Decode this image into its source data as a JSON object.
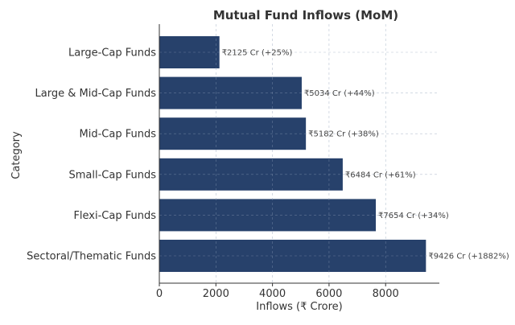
{
  "chart_data": {
    "type": "bar",
    "orientation": "horizontal",
    "title": "Mutual Fund Inflows (MoM)",
    "xlabel": "Inflows (₹ Crore)",
    "ylabel": "Category",
    "categories": [
      "Large-Cap Funds",
      "Large & Mid-Cap Funds",
      "Mid-Cap Funds",
      "Small-Cap Funds",
      "Flexi-Cap Funds",
      "Sectoral/Thematic Funds"
    ],
    "values": [
      2125,
      5034,
      5182,
      6484,
      7654,
      9426
    ],
    "data_labels": [
      "₹2125 Cr (+25%)",
      "₹5034 Cr (+44%)",
      "₹5182 Cr (+38%)",
      "₹6484 Cr (+61%)",
      "₹7654 Cr (+34%)",
      "₹9426 Cr (+1882%)"
    ],
    "xticks": [
      0,
      2000,
      4000,
      6000,
      8000
    ],
    "xlim": [
      0,
      9900
    ],
    "grid": true,
    "bar_color": "#27416b"
  }
}
